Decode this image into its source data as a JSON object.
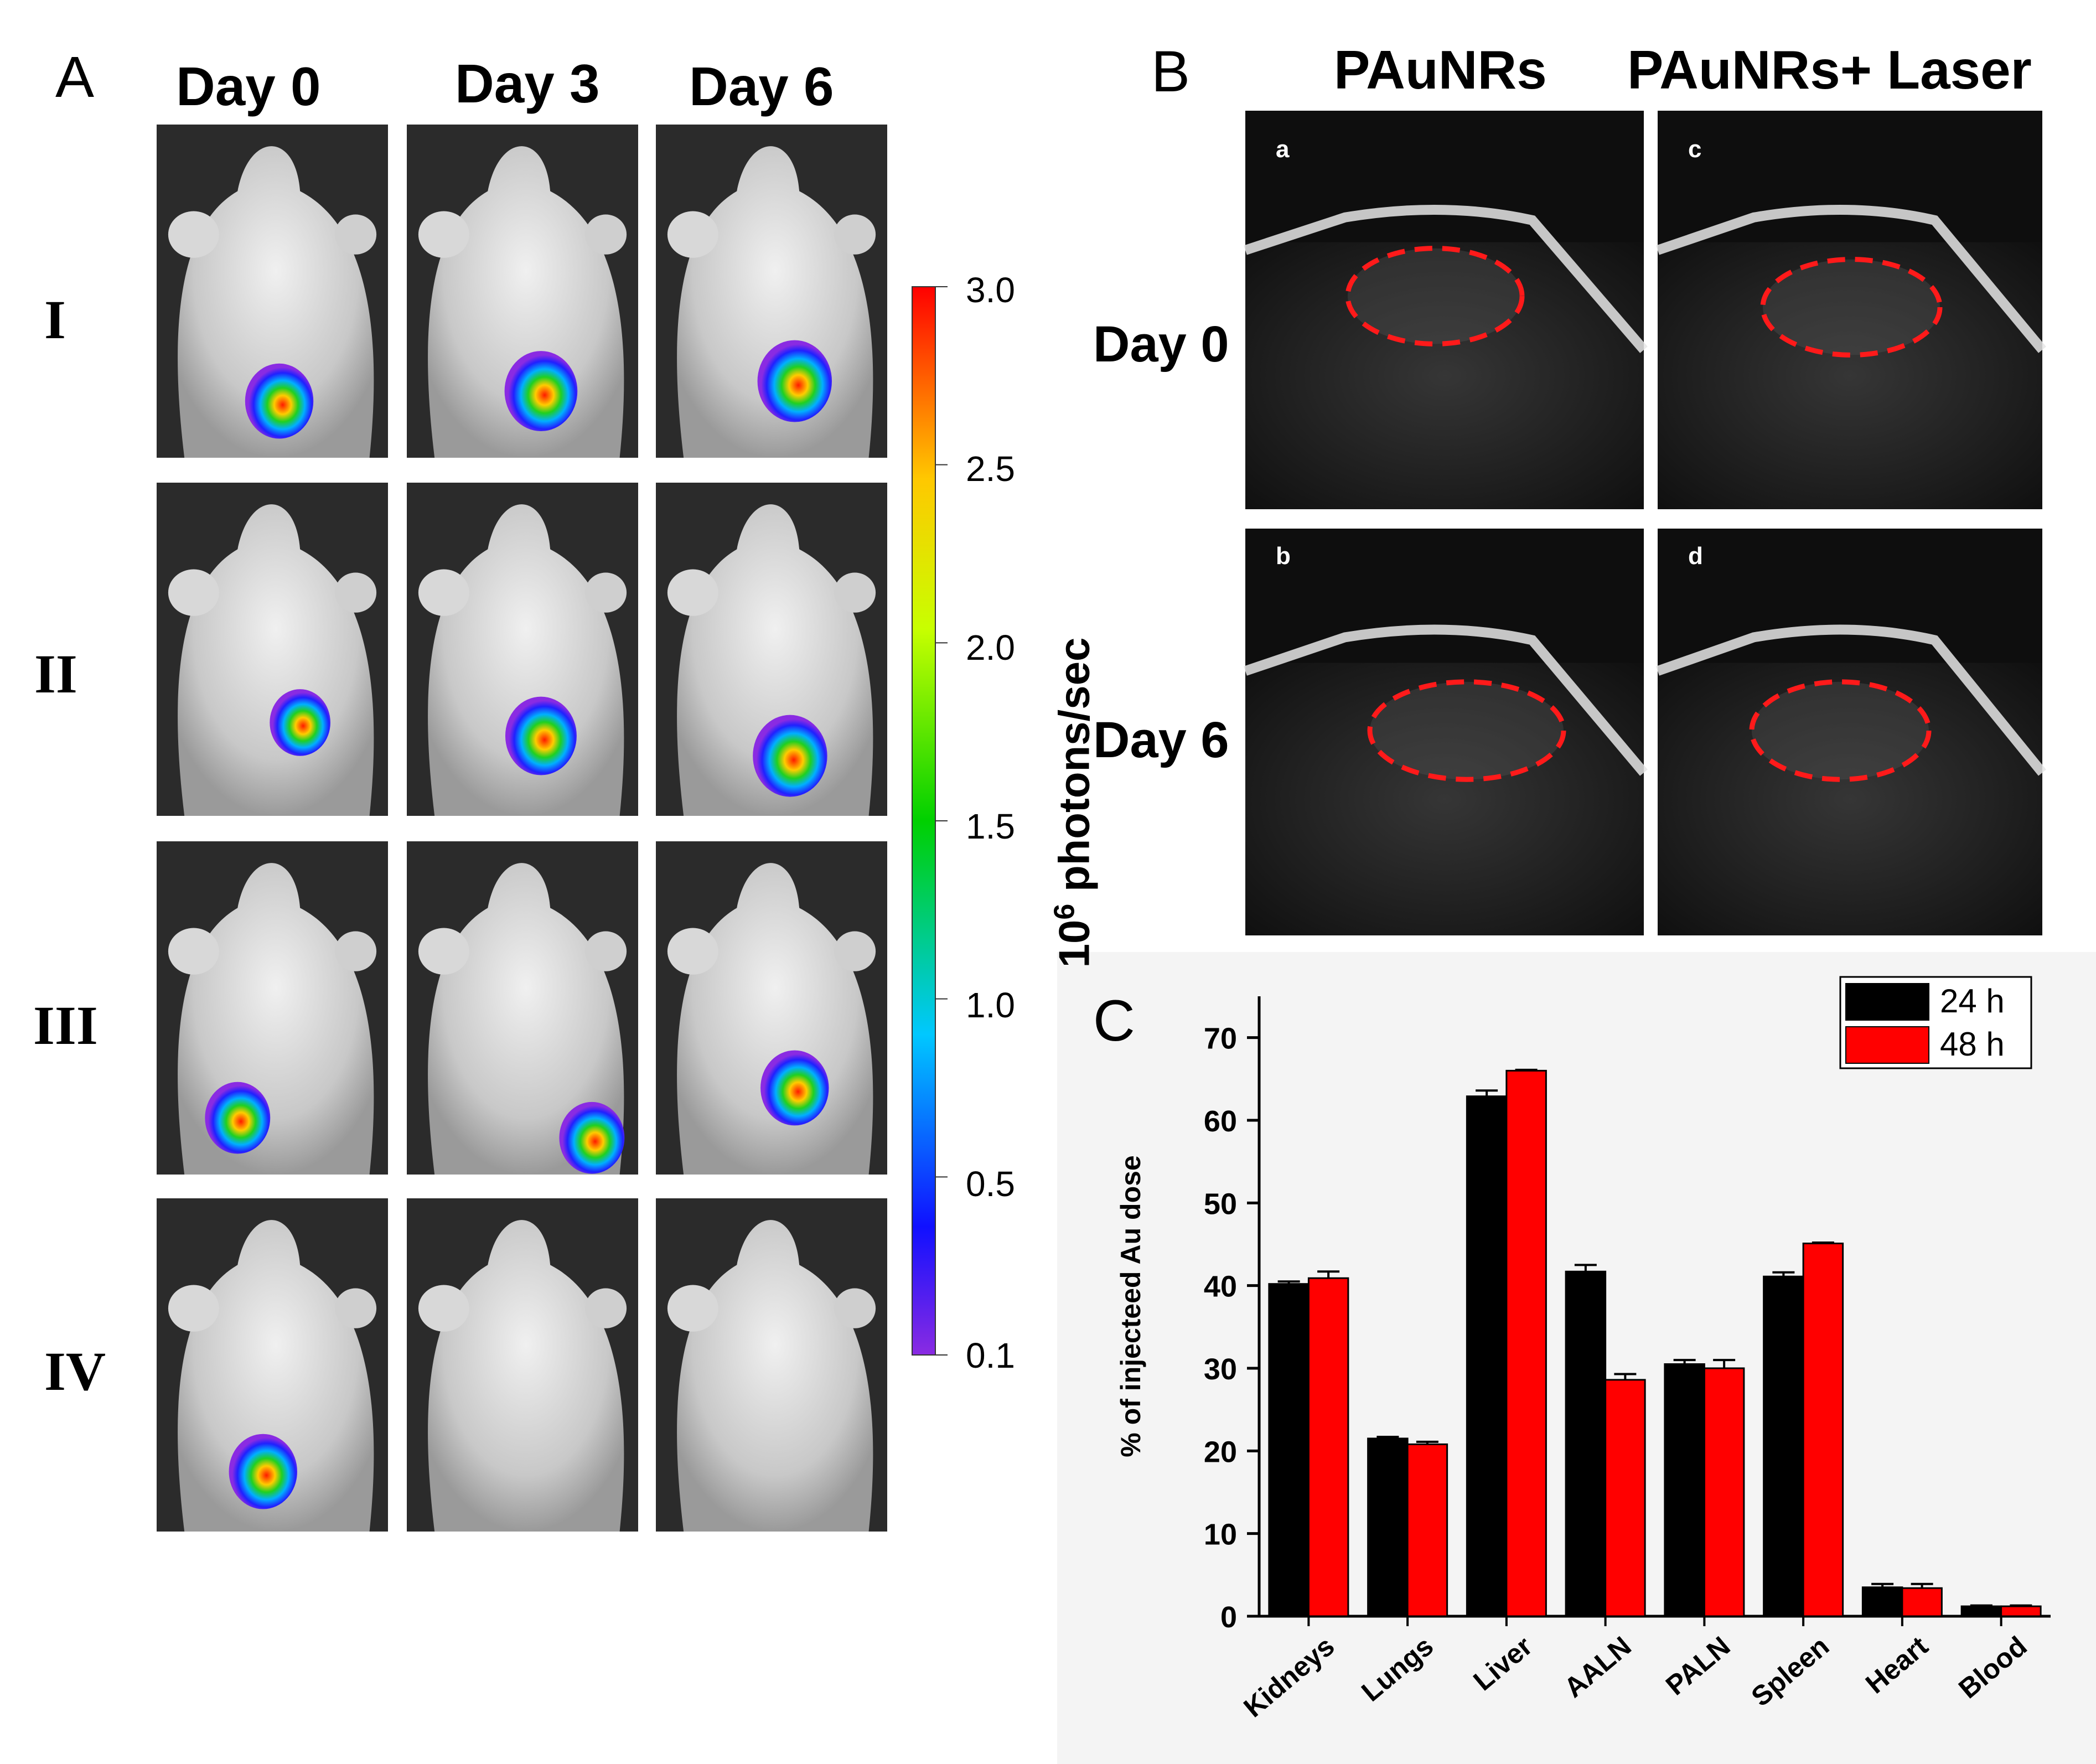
{
  "panel_a": {
    "letter": "A",
    "columns": [
      "Day 0",
      "Day 3",
      "Day 6"
    ],
    "rows": [
      "I",
      "II",
      "III",
      "IV"
    ],
    "images": [
      [
        {
          "signal": 2.4
        },
        {
          "signal": 2.7
        },
        {
          "signal": 2.8
        }
      ],
      [
        {
          "signal": 1.9
        },
        {
          "signal": 2.6
        },
        {
          "signal": 2.8
        }
      ],
      [
        {
          "signal": 2.2
        },
        {
          "signal": 2.2
        },
        {
          "signal": 2.4
        }
      ],
      [
        {
          "signal": 2.4
        },
        {
          "signal": 0
        },
        {
          "signal": 0
        }
      ]
    ],
    "colorbar": {
      "title": "10",
      "title_sup": "6",
      "title_rest": " photons/sec",
      "ticks": [
        "3.0",
        "2.5",
        "2.0",
        "1.5",
        "1.0",
        "0.5",
        "0.1"
      ],
      "min": 0.1,
      "max": 3.0
    }
  },
  "panel_b": {
    "letter": "B",
    "columns": [
      "PAuNRs",
      "PAuNRs+ Laser"
    ],
    "rows": [
      "Day 0",
      "Day 6"
    ],
    "subpanels": [
      "a",
      "c",
      "b",
      "d"
    ]
  },
  "chart_data": {
    "type": "bar",
    "panel_letter": "C",
    "title": "",
    "xlabel": "",
    "ylabel": "% of injecteed Au dose",
    "ylim": [
      0,
      75
    ],
    "yticks": [
      0,
      10,
      20,
      30,
      40,
      50,
      60,
      70
    ],
    "categories": [
      "Kidneys",
      "Lungs",
      "Liver",
      "AALN",
      "PALN",
      "Spleen",
      "Heart",
      "Blood"
    ],
    "series": [
      {
        "name": "24 h",
        "color": "#000000",
        "values": [
          40.2,
          21.5,
          62.9,
          41.7,
          30.5,
          41.1,
          3.5,
          1.2
        ],
        "errors": [
          0.3,
          0.2,
          0.7,
          0.8,
          0.5,
          0.5,
          0.4,
          0.1
        ]
      },
      {
        "name": "48 h",
        "color": "#ff0000",
        "values": [
          40.9,
          20.8,
          66.0,
          28.6,
          30.0,
          45.1,
          3.4,
          1.2
        ],
        "errors": [
          0.8,
          0.3,
          0.1,
          0.7,
          1.0,
          0.1,
          0.5,
          0.1
        ]
      }
    ],
    "legend_position": "top-right",
    "grid": false
  }
}
